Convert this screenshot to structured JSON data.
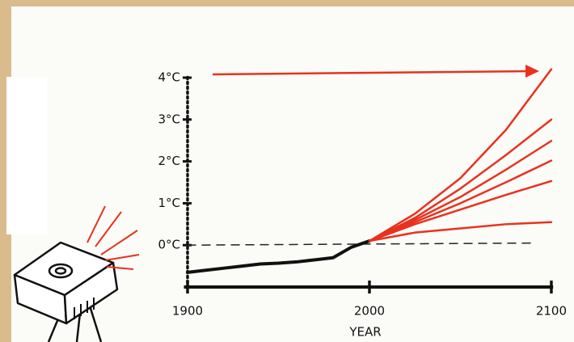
{
  "chart_data": {
    "type": "line",
    "x_label": "YEAR",
    "xlim": [
      1898,
      2101
    ],
    "xticks": [
      1900,
      2000,
      2100
    ],
    "ylim": [
      -1,
      4.3
    ],
    "yticks": [
      {
        "value": 0,
        "label": "0°C"
      },
      {
        "value": 1,
        "label": "1°C"
      },
      {
        "value": 2,
        "label": "2°C"
      },
      {
        "value": 3,
        "label": "3°C"
      },
      {
        "value": 4,
        "label": "4°C"
      }
    ],
    "series": [
      {
        "color": "#222222",
        "dash": true,
        "width": 1.5,
        "x": [
          1900,
          2090
        ],
        "values": [
          0,
          0.05
        ]
      },
      {
        "color": "#111111",
        "width": 4,
        "x": [
          1900,
          1910,
          1920,
          1930,
          1940,
          1950,
          1960,
          1970,
          1980,
          1990,
          2000
        ],
        "values": [
          -0.65,
          -0.6,
          -0.55,
          -0.5,
          -0.45,
          -0.43,
          -0.4,
          -0.35,
          -0.3,
          -0.05,
          0.1
        ]
      },
      {
        "color": "#e8321e",
        "width": 2.5,
        "x": [
          2000,
          2025,
          2050,
          2075,
          2100
        ],
        "values": [
          0.1,
          0.3,
          0.4,
          0.5,
          0.55
        ]
      },
      {
        "color": "#e8321e",
        "width": 2.5,
        "x": [
          2000,
          2025,
          2050,
          2075,
          2100
        ],
        "values": [
          0.1,
          0.5,
          0.85,
          1.2,
          1.53
        ]
      },
      {
        "color": "#e8321e",
        "width": 2.5,
        "x": [
          2000,
          2025,
          2050,
          2075,
          2100
        ],
        "values": [
          0.1,
          0.55,
          1.0,
          1.5,
          2.02
        ]
      },
      {
        "color": "#e8321e",
        "width": 2.5,
        "x": [
          2000,
          2025,
          2050,
          2075,
          2100
        ],
        "values": [
          0.1,
          0.6,
          1.15,
          1.8,
          2.49
        ]
      },
      {
        "color": "#e8321e",
        "width": 2.5,
        "x": [
          2000,
          2025,
          2050,
          2075,
          2100
        ],
        "values": [
          0.1,
          0.65,
          1.35,
          2.15,
          3.0
        ]
      },
      {
        "color": "#e8321e",
        "width": 2.5,
        "x": [
          2000,
          2025,
          2050,
          2075,
          2100
        ],
        "values": [
          0.1,
          0.75,
          1.6,
          2.75,
          4.2
        ]
      }
    ]
  }
}
